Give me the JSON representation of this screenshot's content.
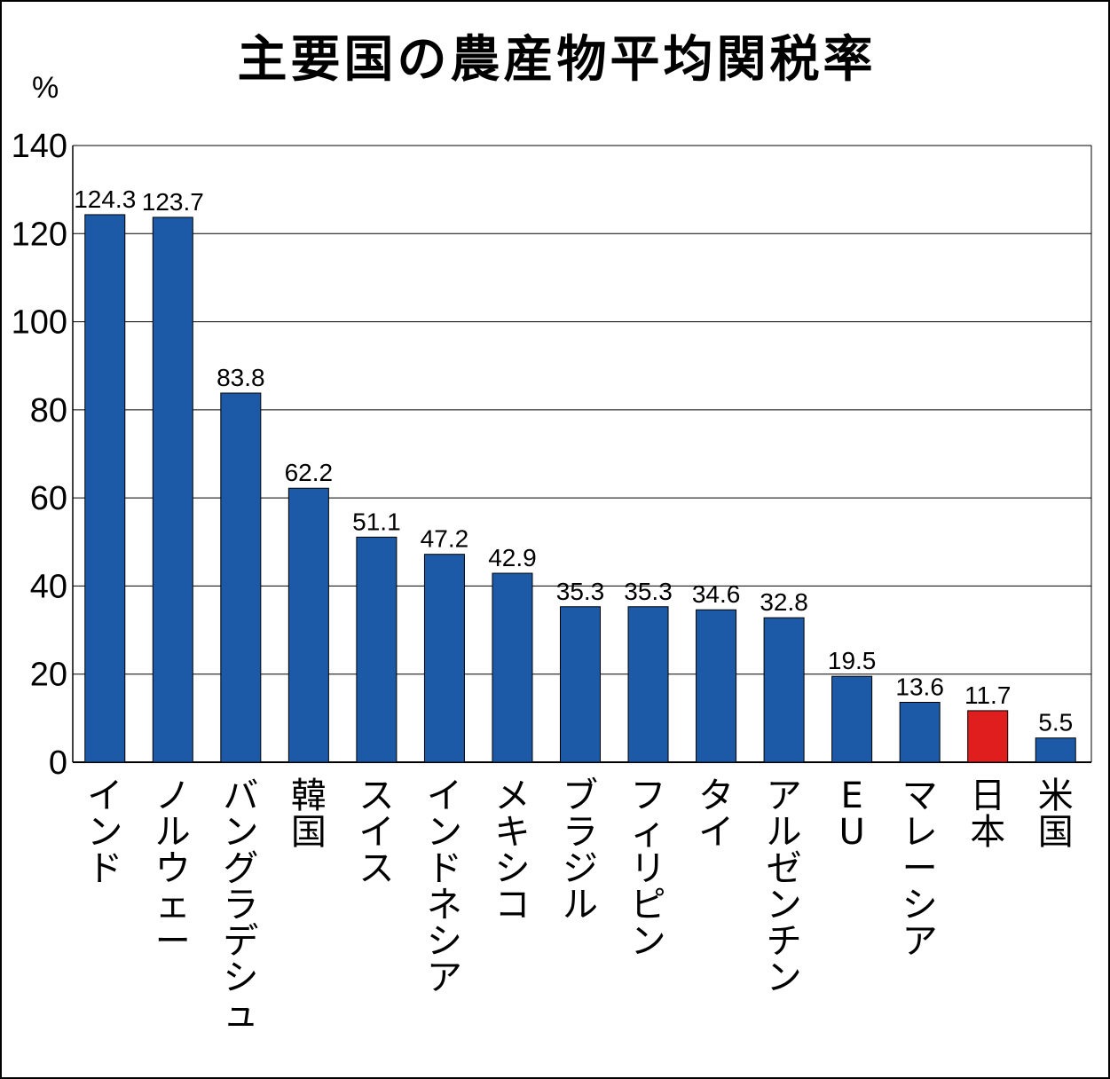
{
  "chart_data": {
    "type": "bar",
    "title": "主要国の農産物平均関税率",
    "unit": "%",
    "ylim": [
      0,
      140
    ],
    "yticks": [
      0,
      20,
      40,
      60,
      80,
      100,
      120,
      140
    ],
    "grid": true,
    "categories": [
      "インド",
      "ノルウェー",
      "バングラデシュ",
      "韓国",
      "スイス",
      "インドネシア",
      "メキシコ",
      "ブラジル",
      "フィリピン",
      "タイ",
      "アルゼンチン",
      "EU",
      "マレーシア",
      "日本",
      "米国"
    ],
    "values": [
      124.3,
      123.7,
      83.8,
      62.2,
      51.1,
      47.2,
      42.9,
      35.3,
      35.3,
      34.6,
      32.8,
      19.5,
      13.6,
      11.7,
      5.5
    ],
    "value_labels": [
      "124.3",
      "123.7",
      "83.8",
      "62.2",
      "51.1",
      "47.2",
      "42.9",
      "35.3",
      "35.3",
      "34.6",
      "32.8",
      "19.5",
      "13.6",
      "11.7",
      "5.5"
    ],
    "bar_color": "#1c5aa8",
    "highlight_category": "日本",
    "highlight_color": "#e01e1e",
    "grid_color": "#000000"
  }
}
